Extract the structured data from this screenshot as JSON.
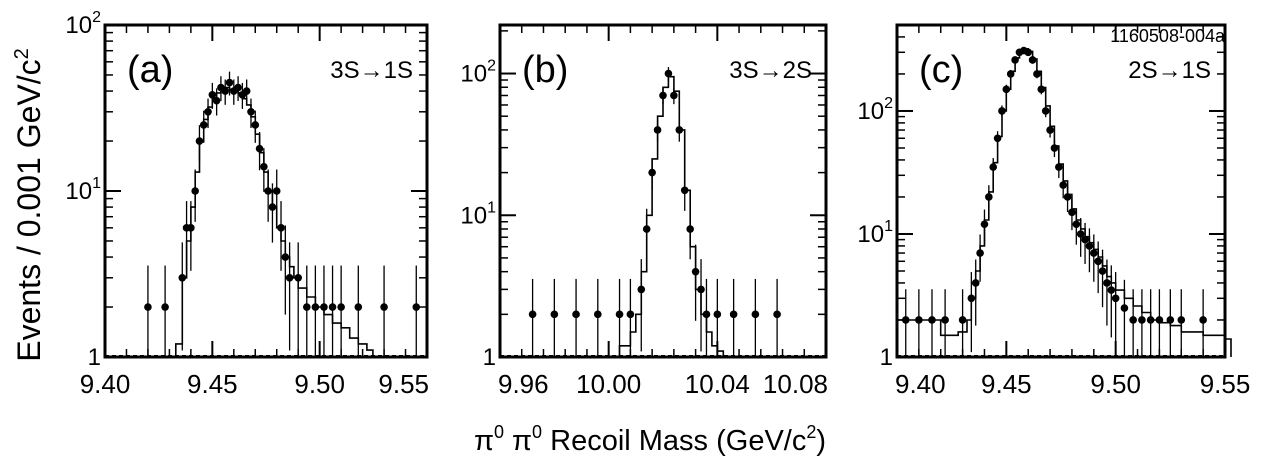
{
  "figure": {
    "id_label": "1160508-004a",
    "ylabel": "Events / 0.001 GeV/c",
    "ylabel_sup": "2",
    "xlabel_pre": "π",
    "xlabel_sup1": "0",
    "xlabel_mid": " π",
    "xlabel_sup2": "0",
    "xlabel_post": " Recoil Mass (GeV/c",
    "xlabel_sup3": "2",
    "xlabel_end": ")"
  },
  "chart_data": [
    {
      "type": "scatter",
      "panel_label": "(a)",
      "transition": "3S→1S",
      "y_scale": "log",
      "xlim": [
        9.4,
        9.55
      ],
      "ylim": [
        1,
        100
      ],
      "x_ticks": [
        "9.40",
        "9.45",
        "9.50",
        "9.55"
      ],
      "y_ticks": [
        {
          "base": "1",
          "exp": ""
        },
        {
          "base": "10",
          "exp": "1"
        },
        {
          "base": "10",
          "exp": "2"
        }
      ],
      "series": [
        {
          "style": "points",
          "points": [
            [
              9.42,
              2
            ],
            [
              9.428,
              2
            ],
            [
              9.436,
              3
            ],
            [
              9.438,
              6
            ],
            [
              9.44,
              6
            ],
            [
              9.442,
              10
            ],
            [
              9.444,
              20
            ],
            [
              9.446,
              25
            ],
            [
              9.448,
              30
            ],
            [
              9.45,
              38
            ],
            [
              9.452,
              35
            ],
            [
              9.454,
              42
            ],
            [
              9.456,
              40
            ],
            [
              9.458,
              45
            ],
            [
              9.46,
              40
            ],
            [
              9.462,
              42
            ],
            [
              9.464,
              38
            ],
            [
              9.466,
              40
            ],
            [
              9.468,
              30
            ],
            [
              9.47,
              25
            ],
            [
              9.472,
              18
            ],
            [
              9.474,
              14
            ],
            [
              9.476,
              10
            ],
            [
              9.478,
              8
            ],
            [
              9.48,
              10
            ],
            [
              9.482,
              6
            ],
            [
              9.484,
              4
            ],
            [
              9.486,
              3
            ],
            [
              9.49,
              3
            ],
            [
              9.494,
              2
            ],
            [
              9.498,
              2
            ],
            [
              9.502,
              2
            ],
            [
              9.506,
              2
            ],
            [
              9.51,
              2
            ],
            [
              9.518,
              2
            ],
            [
              9.53,
              2
            ],
            [
              9.545,
              2
            ]
          ]
        },
        {
          "style": "histogram",
          "points": [
            [
              9.433,
              1.2
            ],
            [
              9.436,
              3
            ],
            [
              9.438,
              5
            ],
            [
              9.44,
              8
            ],
            [
              9.442,
              13
            ],
            [
              9.444,
              20
            ],
            [
              9.446,
              27
            ],
            [
              9.448,
              32
            ],
            [
              9.45,
              36
            ],
            [
              9.452,
              39
            ],
            [
              9.454,
              41
            ],
            [
              9.456,
              42
            ],
            [
              9.458,
              41
            ],
            [
              9.46,
              40
            ],
            [
              9.462,
              39
            ],
            [
              9.464,
              36
            ],
            [
              9.466,
              33
            ],
            [
              9.468,
              28
            ],
            [
              9.47,
              22
            ],
            [
              9.472,
              17
            ],
            [
              9.474,
              13
            ],
            [
              9.476,
              10
            ],
            [
              9.478,
              8
            ],
            [
              9.48,
              6
            ],
            [
              9.482,
              5
            ],
            [
              9.484,
              4
            ],
            [
              9.486,
              3.5
            ],
            [
              9.488,
              3
            ],
            [
              9.49,
              2.6
            ],
            [
              9.494,
              2.3
            ],
            [
              9.498,
              2
            ],
            [
              9.502,
              1.8
            ],
            [
              9.506,
              1.6
            ],
            [
              9.51,
              1.5
            ],
            [
              9.514,
              1.3
            ],
            [
              9.518,
              1.2
            ],
            [
              9.522,
              1.1
            ]
          ]
        }
      ]
    },
    {
      "type": "scatter",
      "panel_label": "(b)",
      "transition": "3S→2S",
      "y_scale": "log",
      "xlim": [
        9.96,
        10.08
      ],
      "ylim": [
        1,
        220
      ],
      "x_ticks": [
        "9.96",
        "10.00",
        "10.04",
        "10.08"
      ],
      "y_ticks": [
        {
          "base": "1",
          "exp": ""
        },
        {
          "base": "10",
          "exp": "1"
        },
        {
          "base": "10",
          "exp": "2"
        }
      ],
      "series": [
        {
          "style": "points",
          "points": [
            [
              9.972,
              2
            ],
            [
              9.98,
              2
            ],
            [
              9.988,
              2
            ],
            [
              9.996,
              2
            ],
            [
              10.004,
              2
            ],
            [
              10.008,
              2
            ],
            [
              10.012,
              3
            ],
            [
              10.014,
              8
            ],
            [
              10.016,
              20
            ],
            [
              10.018,
              40
            ],
            [
              10.02,
              70
            ],
            [
              10.022,
              100
            ],
            [
              10.024,
              70
            ],
            [
              10.026,
              40
            ],
            [
              10.028,
              15
            ],
            [
              10.03,
              8
            ],
            [
              10.032,
              4
            ],
            [
              10.034,
              3
            ],
            [
              10.036,
              2
            ],
            [
              10.04,
              2
            ],
            [
              10.046,
              2
            ],
            [
              10.054,
              2
            ],
            [
              10.062,
              2
            ]
          ]
        },
        {
          "style": "histogram",
          "points": [
            [
              10.004,
              1.2
            ],
            [
              10.008,
              1.5
            ],
            [
              10.01,
              2
            ],
            [
              10.012,
              4
            ],
            [
              10.014,
              10
            ],
            [
              10.016,
              25
            ],
            [
              10.018,
              50
            ],
            [
              10.02,
              80
            ],
            [
              10.022,
              95
            ],
            [
              10.024,
              75
            ],
            [
              10.026,
              40
            ],
            [
              10.028,
              15
            ],
            [
              10.03,
              6
            ],
            [
              10.032,
              3
            ],
            [
              10.034,
              2
            ],
            [
              10.036,
              1.5
            ],
            [
              10.038,
              1.2
            ],
            [
              10.04,
              1.1
            ]
          ]
        }
      ]
    },
    {
      "type": "scatter",
      "panel_label": "(c)",
      "transition": "2S→1S",
      "y_scale": "log",
      "xlim": [
        9.4,
        9.55
      ],
      "ylim": [
        1,
        500
      ],
      "x_ticks": [
        "9.40",
        "9.45",
        "9.50",
        "9.55"
      ],
      "y_ticks": [
        {
          "base": "1",
          "exp": ""
        },
        {
          "base": "10",
          "exp": "1"
        },
        {
          "base": "10",
          "exp": "2"
        }
      ],
      "series": [
        {
          "style": "points",
          "points": [
            [
              9.404,
              2
            ],
            [
              9.41,
              2
            ],
            [
              9.416,
              2
            ],
            [
              9.422,
              2
            ],
            [
              9.43,
              2
            ],
            [
              9.434,
              3
            ],
            [
              9.436,
              4
            ],
            [
              9.438,
              7
            ],
            [
              9.44,
              12
            ],
            [
              9.442,
              20
            ],
            [
              9.444,
              35
            ],
            [
              9.446,
              60
            ],
            [
              9.448,
              100
            ],
            [
              9.45,
              150
            ],
            [
              9.452,
              200
            ],
            [
              9.454,
              260
            ],
            [
              9.456,
              300
            ],
            [
              9.458,
              310
            ],
            [
              9.46,
              300
            ],
            [
              9.462,
              260
            ],
            [
              9.464,
              200
            ],
            [
              9.466,
              150
            ],
            [
              9.468,
              100
            ],
            [
              9.47,
              70
            ],
            [
              9.472,
              50
            ],
            [
              9.474,
              35
            ],
            [
              9.476,
              25
            ],
            [
              9.478,
              20
            ],
            [
              9.48,
              15
            ],
            [
              9.482,
              12
            ],
            [
              9.484,
              10
            ],
            [
              9.486,
              9
            ],
            [
              9.488,
              8
            ],
            [
              9.49,
              7
            ],
            [
              9.492,
              6
            ],
            [
              9.494,
              5
            ],
            [
              9.496,
              4
            ],
            [
              9.498,
              3.5
            ],
            [
              9.5,
              3
            ],
            [
              9.504,
              2.5
            ],
            [
              9.508,
              2
            ],
            [
              9.512,
              2
            ],
            [
              9.516,
              2
            ],
            [
              9.52,
              2
            ],
            [
              9.525,
              2
            ],
            [
              9.53,
              2
            ],
            [
              9.54,
              2
            ]
          ]
        },
        {
          "style": "histogram",
          "points": [
            [
              9.4,
              2
            ],
            [
              9.412,
              2
            ],
            [
              9.42,
              1.5
            ],
            [
              9.428,
              1.6
            ],
            [
              9.432,
              2
            ],
            [
              9.434,
              3
            ],
            [
              9.436,
              5
            ],
            [
              9.438,
              8
            ],
            [
              9.44,
              13
            ],
            [
              9.442,
              22
            ],
            [
              9.444,
              38
            ],
            [
              9.446,
              62
            ],
            [
              9.448,
              100
            ],
            [
              9.45,
              150
            ],
            [
              9.452,
              210
            ],
            [
              9.454,
              270
            ],
            [
              9.456,
              310
            ],
            [
              9.458,
              320
            ],
            [
              9.46,
              305
            ],
            [
              9.462,
              265
            ],
            [
              9.464,
              210
            ],
            [
              9.466,
              155
            ],
            [
              9.468,
              110
            ],
            [
              9.47,
              75
            ],
            [
              9.472,
              52
            ],
            [
              9.474,
              37
            ],
            [
              9.476,
              27
            ],
            [
              9.478,
              21
            ],
            [
              9.48,
              16
            ],
            [
              9.482,
              13
            ],
            [
              9.484,
              11
            ],
            [
              9.486,
              9.5
            ],
            [
              9.488,
              8.5
            ],
            [
              9.49,
              7.5
            ],
            [
              9.492,
              6.5
            ],
            [
              9.494,
              5.5
            ],
            [
              9.496,
              4.5
            ],
            [
              9.498,
              4
            ],
            [
              9.5,
              3.5
            ],
            [
              9.504,
              3
            ],
            [
              9.508,
              2.6
            ],
            [
              9.512,
              2.3
            ],
            [
              9.516,
              2
            ],
            [
              9.52,
              1.9
            ],
            [
              9.525,
              1.8
            ],
            [
              9.53,
              1.6
            ],
            [
              9.54,
              1.5
            ],
            [
              9.55,
              1.4
            ]
          ]
        }
      ]
    }
  ]
}
